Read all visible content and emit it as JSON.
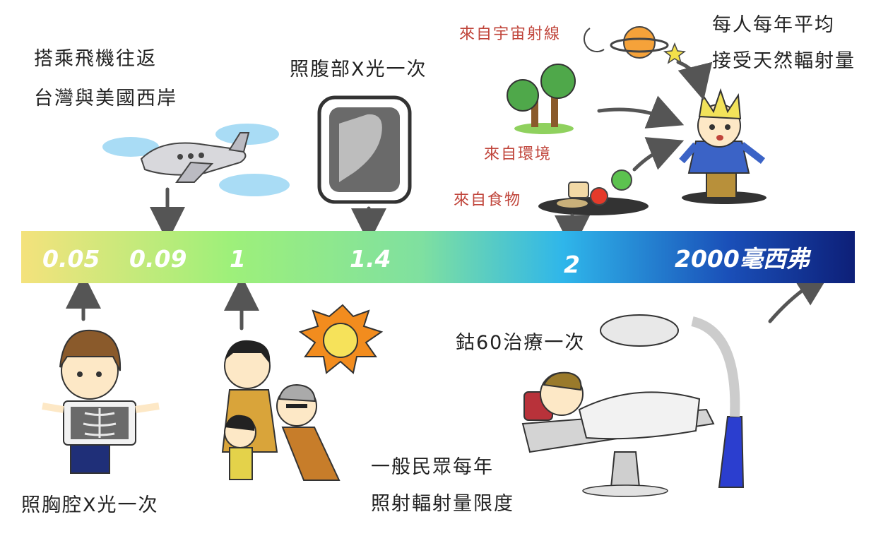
{
  "scale": {
    "ticks": [
      "0.05",
      "0.09",
      "1",
      "1.4",
      "2",
      "2000毫西弗"
    ],
    "gradient": [
      "#f4e27c",
      "#9ef07a",
      "#7fe0a0",
      "#2fb6ea",
      "#1a4fb8",
      "#0d1f78"
    ]
  },
  "labels": {
    "flight_line1": "搭乘飛機往返",
    "flight_line2": "台灣與美國西岸",
    "abdomen_xray": "照腹部X光一次",
    "cosmic": "來自宇宙射線",
    "environment": "來自環境",
    "food": "來自食物",
    "natural_line1": "每人每年平均",
    "natural_line2": "接受天然輻射量",
    "chest_xray": "照胸腔X光一次",
    "public_line1": "一般民眾每年",
    "public_line2": "照射輻射量限度",
    "cobalt": "鈷60治療一次"
  },
  "colors": {
    "label_red": "#c0443a",
    "arrow": "#555555"
  }
}
